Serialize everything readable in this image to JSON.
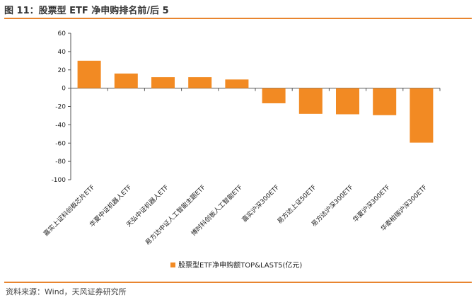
{
  "figure": {
    "title": "图 11：股票型 ETF 净申购排名前/后 5",
    "source": "资料来源：Wind，天风证券研究所"
  },
  "colors": {
    "bar": "#f28a23",
    "rule": "#e8852f",
    "axis": "#555555"
  },
  "chart_data": {
    "type": "bar",
    "categories": [
      "嘉实上证科创板芯片ETF",
      "华夏中证机器人ETF",
      "天弘中证机器人ETF",
      "易方达中证人工智能主题ETF",
      "博时科创板人工智能ETF",
      "嘉实沪深300ETF",
      "易方达上证50ETF",
      "易方达沪深300ETF",
      "华夏沪深300ETF",
      "华泰柏瑞沪深300ETF"
    ],
    "series": [
      {
        "name": "股票型ETF净申购额TOP&LAST5(亿元)",
        "values": [
          30,
          16,
          12,
          12,
          9.5,
          -16.5,
          -28,
          -28.5,
          -29.5,
          -59.5
        ]
      }
    ],
    "ylim": [
      -100,
      60
    ],
    "yticks": [
      60,
      40,
      20,
      0,
      -20,
      -40,
      -60,
      -80,
      -100
    ],
    "legend_position": "bottom",
    "grid": false
  }
}
